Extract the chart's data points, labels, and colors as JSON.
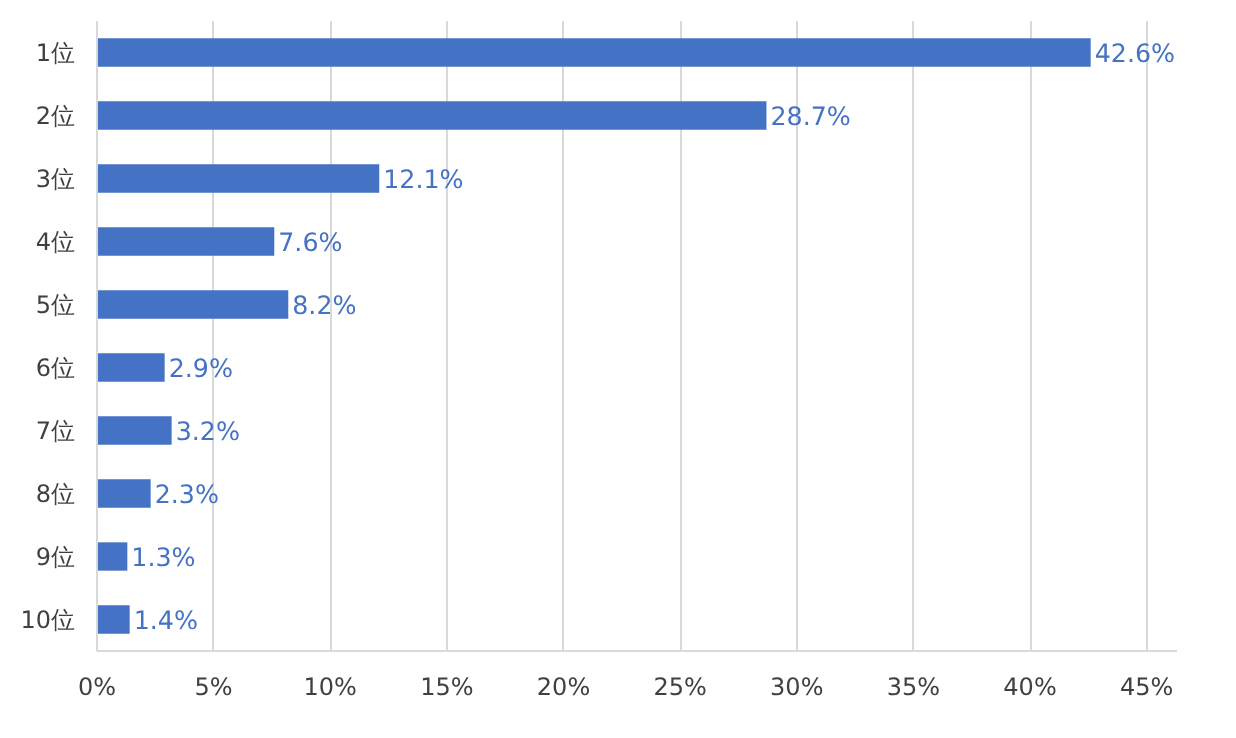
{
  "chart_data": {
    "type": "bar",
    "orientation": "horizontal",
    "categories": [
      "1位",
      "2位",
      "3位",
      "4位",
      "5位",
      "6位",
      "7位",
      "8位",
      "9位",
      "10位"
    ],
    "values": [
      42.6,
      28.7,
      12.1,
      7.6,
      8.2,
      2.9,
      3.2,
      2.3,
      1.3,
      1.4
    ],
    "value_labels": [
      "42.6%",
      "28.7%",
      "12.1%",
      "7.6%",
      "8.2%",
      "2.9%",
      "3.2%",
      "2.3%",
      "1.3%",
      "1.4%"
    ],
    "color": "#4472c4",
    "xlim": [
      0,
      46.3
    ],
    "xticks": [
      {
        "value": 0,
        "label": "0%"
      },
      {
        "value": 5,
        "label": "5%"
      },
      {
        "value": 10,
        "label": "10%"
      },
      {
        "value": 15,
        "label": "15%"
      },
      {
        "value": 20,
        "label": "20%"
      },
      {
        "value": 25,
        "label": "25%"
      },
      {
        "value": 30,
        "label": "30%"
      },
      {
        "value": 35,
        "label": "35%"
      },
      {
        "value": 40,
        "label": "40%"
      },
      {
        "value": 45,
        "label": "45%"
      }
    ],
    "grid": "x"
  }
}
